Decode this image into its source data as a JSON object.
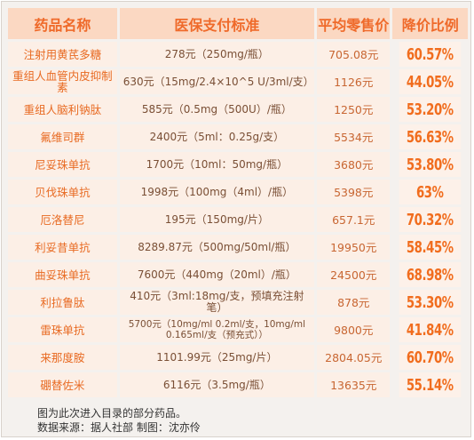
{
  "table": {
    "headers": [
      "药品名称",
      "医保支付标准",
      "平均零售价",
      "降价比例"
    ],
    "rows": [
      {
        "name": "注射用黄芪多糖",
        "standard": "278元（250mg/瓶）",
        "price": "705.08元",
        "rate": "60.57%"
      },
      {
        "name": "重组人血管内皮抑制素",
        "standard": "630元（15mg/2.4×10^5 U/3ml/支）",
        "price": "1126元",
        "rate": "44.05%"
      },
      {
        "name": "重组人脑利钠肽",
        "standard": "585元（0.5mg（500U）/瓶）",
        "price": "1250元",
        "rate": "53.20%"
      },
      {
        "name": "氟维司群",
        "standard": "2400元（5ml：0.25g/支）",
        "price": "5534元",
        "rate": "56.63%"
      },
      {
        "name": "尼妥珠单抗",
        "standard": "1700元（10ml：50mg/瓶）",
        "price": "3680元",
        "rate": "53.80%"
      },
      {
        "name": "贝伐珠单抗",
        "standard": "1998元（100mg（4ml）/瓶）",
        "price": "5398元",
        "rate": "63%"
      },
      {
        "name": "厄洛替尼",
        "standard": "195元（150mg/片）",
        "price": "657.1元",
        "rate": "70.32%"
      },
      {
        "name": "利妥昔单抗",
        "standard": "8289.87元（500mg/50ml/瓶）",
        "price": "19950元",
        "rate": "58.45%"
      },
      {
        "name": "曲妥珠单抗",
        "standard": "7600元（440mg（20ml）/瓶）",
        "price": "24500元",
        "rate": "68.98%"
      },
      {
        "name": "利拉鲁肽",
        "standard": "410元（3ml:18mg/支，预填充注射笔）",
        "price": "878元",
        "rate": "53.30%"
      },
      {
        "name": "雷珠单抗",
        "standard": "5700元（10mg/ml 0.2ml/支，10mg/ml 0.165ml/支（预充式））",
        "price": "9800元",
        "rate": "41.84%"
      },
      {
        "name": "来那度胺",
        "standard": "1101.99元（25mg/片）",
        "price": "2804.05元",
        "rate": "60.70%"
      },
      {
        "name": "硼替佐米",
        "standard": "6116元（3.5mg/瓶）",
        "price": "13635元",
        "rate": "55.14%"
      }
    ]
  },
  "caption": {
    "line1": "图为此次进入目录的部分药品。",
    "line2": "数据来源：据人社部 制图：沈亦伶"
  }
}
